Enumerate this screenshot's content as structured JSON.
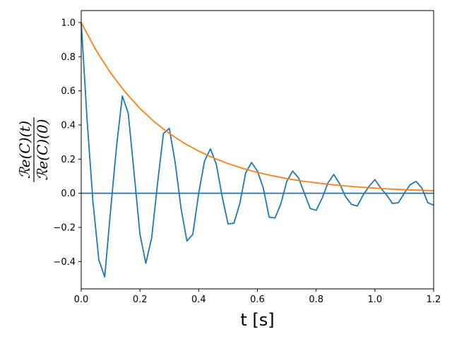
{
  "chart_data": {
    "type": "line",
    "xlabel": "t   [s]",
    "ylabel_numerator": "ℛe(C)(t)",
    "ylabel_denominator": "ℛe(C)(0)",
    "xlim": [
      0,
      1.2
    ],
    "ylim": [
      -0.56,
      1.07
    ],
    "xticks": [
      0.0,
      0.2,
      0.4,
      0.6,
      0.8,
      1.0,
      1.2
    ],
    "xtick_labels": [
      "0.0",
      "0.2",
      "0.4",
      "0.6",
      "0.8",
      "1.0",
      "1.2"
    ],
    "yticks": [
      -0.4,
      -0.2,
      0.0,
      0.2,
      0.4,
      0.6,
      0.8,
      1.0
    ],
    "ytick_labels": [
      "−0.4",
      "−0.2",
      "0.0",
      "0.2",
      "0.4",
      "0.6",
      "0.8",
      "1.0"
    ],
    "grid": false,
    "legend": "none",
    "series": [
      {
        "color": "#1f77b4",
        "x": [
          0.0,
          0.02,
          0.04,
          0.06,
          0.08,
          0.1,
          0.12,
          0.14,
          0.16,
          0.18,
          0.2,
          0.22,
          0.24,
          0.26,
          0.28,
          0.3,
          0.32,
          0.34,
          0.36,
          0.38,
          0.4,
          0.42,
          0.44,
          0.46,
          0.48,
          0.5,
          0.52,
          0.54,
          0.56,
          0.58,
          0.6,
          0.62,
          0.64,
          0.66,
          0.68,
          0.7,
          0.72,
          0.74,
          0.76,
          0.78,
          0.8,
          0.82,
          0.84,
          0.86,
          0.88,
          0.9,
          0.92,
          0.94,
          0.96,
          0.98,
          1.0,
          1.02,
          1.04,
          1.06,
          1.08,
          1.1,
          1.12,
          1.14,
          1.16,
          1.18,
          1.2
        ],
        "y": [
          1.0,
          0.43,
          -0.05,
          -0.39,
          -0.49,
          -0.1,
          0.27,
          0.57,
          0.47,
          0.12,
          -0.24,
          -0.41,
          -0.26,
          0.06,
          0.35,
          0.38,
          0.18,
          -0.09,
          -0.28,
          -0.24,
          0.0,
          0.19,
          0.26,
          0.17,
          -0.02,
          -0.18,
          -0.175,
          -0.06,
          0.12,
          0.18,
          0.13,
          0.03,
          -0.14,
          -0.145,
          -0.06,
          0.07,
          0.13,
          0.09,
          0.0,
          -0.09,
          -0.1,
          -0.03,
          0.06,
          0.11,
          0.055,
          -0.02,
          -0.065,
          -0.075,
          -0.01,
          0.04,
          0.08,
          0.03,
          -0.01,
          -0.06,
          -0.055,
          0.0,
          0.05,
          0.07,
          0.03,
          -0.055,
          -0.07
        ]
      },
      {
        "color": "#1f77b4",
        "x": [
          0.0,
          1.2
        ],
        "y": [
          0.0,
          0.0
        ]
      },
      {
        "color": "#ff7f0e",
        "x": [
          0.0,
          0.05,
          0.1,
          0.15,
          0.2,
          0.25,
          0.3,
          0.35,
          0.4,
          0.45,
          0.5,
          0.55,
          0.6,
          0.65,
          0.7,
          0.75,
          0.8,
          0.85,
          0.9,
          0.95,
          1.0,
          1.05,
          1.1,
          1.15,
          1.2
        ],
        "y": [
          1.0,
          0.839,
          0.705,
          0.592,
          0.497,
          0.417,
          0.35,
          0.294,
          0.247,
          0.207,
          0.174,
          0.146,
          0.122,
          0.103,
          0.086,
          0.072,
          0.061,
          0.051,
          0.043,
          0.036,
          0.03,
          0.025,
          0.021,
          0.018,
          0.015
        ]
      }
    ]
  }
}
